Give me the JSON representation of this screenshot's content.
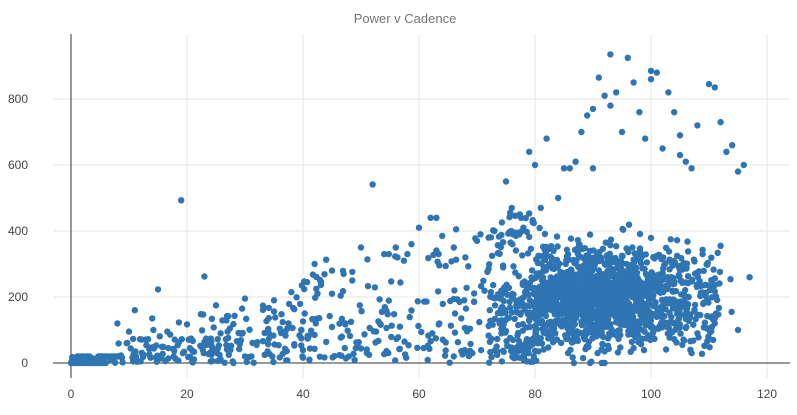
{
  "chart_data": {
    "type": "scatter",
    "title": "Power v Cadence",
    "xlabel": "",
    "ylabel": "",
    "xlim": [
      -2,
      124
    ],
    "ylim": [
      -3,
      995
    ],
    "x_ticks": [
      0,
      20,
      40,
      60,
      80,
      100,
      120
    ],
    "y_ticks": [
      0,
      200,
      400,
      600,
      800
    ],
    "grid": true,
    "legend": "none",
    "point_color": "#2f74b3",
    "series": [
      {
        "points": [
          [
            19,
            493
          ],
          [
            52,
            541
          ],
          [
            15,
            223
          ],
          [
            23,
            262
          ],
          [
            11,
            160
          ],
          [
            14,
            135
          ],
          [
            8,
            120
          ],
          [
            10,
            95
          ],
          [
            25,
            175
          ],
          [
            30,
            195
          ],
          [
            35,
            190
          ],
          [
            38,
            215
          ],
          [
            42,
            300
          ],
          [
            44,
            313
          ],
          [
            45,
            280
          ],
          [
            47,
            270
          ],
          [
            50,
            350
          ],
          [
            54,
            330
          ],
          [
            56,
            350
          ],
          [
            58,
            330
          ],
          [
            60,
            410
          ],
          [
            62,
            440
          ],
          [
            63,
            440
          ],
          [
            66,
            350
          ],
          [
            68,
            320
          ],
          [
            70,
            370
          ],
          [
            72,
            380
          ],
          [
            73,
            400
          ],
          [
            75,
            550
          ],
          [
            76,
            470
          ],
          [
            78,
            410
          ],
          [
            79,
            640
          ],
          [
            80,
            600
          ],
          [
            81,
            470
          ],
          [
            82,
            680
          ],
          [
            84,
            500
          ],
          [
            85,
            590
          ],
          [
            86,
            590
          ],
          [
            87,
            610
          ],
          [
            88,
            700
          ],
          [
            89,
            750
          ],
          [
            90,
            590
          ],
          [
            90,
            770
          ],
          [
            91,
            865
          ],
          [
            92,
            810
          ],
          [
            93,
            935
          ],
          [
            93,
            780
          ],
          [
            94,
            820
          ],
          [
            95,
            700
          ],
          [
            96,
            925
          ],
          [
            97,
            850
          ],
          [
            98,
            760
          ],
          [
            99,
            680
          ],
          [
            100,
            885
          ],
          [
            100,
            860
          ],
          [
            101,
            880
          ],
          [
            102,
            650
          ],
          [
            103,
            820
          ],
          [
            104,
            760
          ],
          [
            105,
            630
          ],
          [
            105,
            690
          ],
          [
            106,
            610
          ],
          [
            107,
            590
          ],
          [
            108,
            720
          ],
          [
            110,
            845
          ],
          [
            111,
            835
          ],
          [
            112,
            730
          ],
          [
            113,
            640
          ],
          [
            114,
            660
          ],
          [
            115,
            580
          ],
          [
            116,
            600
          ],
          [
            117,
            260
          ],
          [
            115,
            100
          ],
          [
            111,
            120
          ],
          [
            100,
            75
          ],
          [
            92,
            35
          ],
          [
            97,
            45
          ],
          [
            103,
            110
          ],
          [
            108,
            90
          ]
        ],
        "generated_count": 2100,
        "generator": "cadence_power_cloud"
      }
    ]
  }
}
